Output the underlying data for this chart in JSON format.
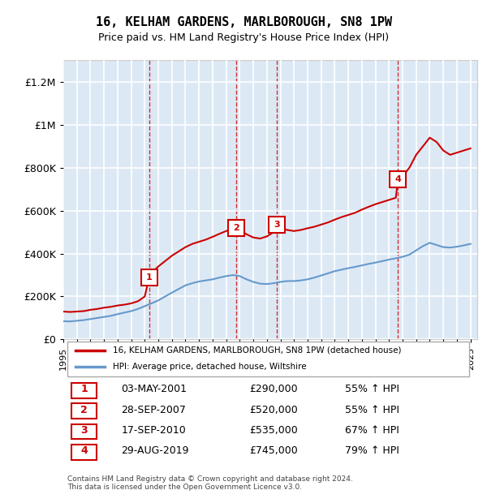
{
  "title": "16, KELHAM GARDENS, MARLBOROUGH, SN8 1PW",
  "subtitle": "Price paid vs. HM Land Registry's House Price Index (HPI)",
  "ylabel_ticks": [
    "£0",
    "£200K",
    "£400K",
    "£600K",
    "£800K",
    "£1M",
    "£1.2M"
  ],
  "ytick_values": [
    0,
    200000,
    400000,
    600000,
    800000,
    1000000,
    1200000
  ],
  "ylim": [
    0,
    1300000
  ],
  "xlim_start": 1995.0,
  "xlim_end": 2025.5,
  "background_color": "#dce9f5",
  "plot_bg_color": "#dce9f5",
  "grid_color": "#ffffff",
  "red_line_color": "#cc0000",
  "blue_line_color": "#6699cc",
  "sale_marker_color": "#cc0000",
  "sale_border_color": "#cc0000",
  "sale_points": [
    {
      "label": "1",
      "year": 2001.33,
      "price": 290000,
      "date": "03-MAY-2001",
      "pct": "55%"
    },
    {
      "label": "2",
      "year": 2007.75,
      "price": 520000,
      "date": "28-SEP-2007",
      "pct": "55%"
    },
    {
      "label": "3",
      "year": 2010.71,
      "price": 535000,
      "date": "17-SEP-2010",
      "pct": "67%"
    },
    {
      "label": "4",
      "year": 2019.66,
      "price": 745000,
      "date": "29-AUG-2019",
      "pct": "79%"
    }
  ],
  "red_line_x": [
    1995.0,
    1995.5,
    1996.0,
    1996.5,
    1997.0,
    1997.5,
    1998.0,
    1998.5,
    1999.0,
    1999.5,
    2000.0,
    2000.5,
    2001.0,
    2001.33,
    2001.5,
    2002.0,
    2002.5,
    2003.0,
    2003.5,
    2004.0,
    2004.5,
    2005.0,
    2005.5,
    2006.0,
    2006.5,
    2007.0,
    2007.5,
    2007.75,
    2008.0,
    2008.5,
    2009.0,
    2009.5,
    2010.0,
    2010.5,
    2010.71,
    2011.0,
    2011.5,
    2012.0,
    2012.5,
    2013.0,
    2013.5,
    2014.0,
    2014.5,
    2015.0,
    2015.5,
    2016.0,
    2016.5,
    2017.0,
    2017.5,
    2018.0,
    2018.5,
    2019.0,
    2019.5,
    2019.66,
    2020.0,
    2020.5,
    2021.0,
    2021.5,
    2022.0,
    2022.5,
    2023.0,
    2023.5,
    2024.0,
    2024.5,
    2025.0
  ],
  "red_line_y": [
    130000,
    128000,
    130000,
    132000,
    138000,
    142000,
    148000,
    152000,
    158000,
    162000,
    168000,
    178000,
    200000,
    290000,
    310000,
    340000,
    365000,
    390000,
    410000,
    430000,
    445000,
    455000,
    465000,
    478000,
    492000,
    505000,
    515000,
    520000,
    510000,
    490000,
    475000,
    470000,
    480000,
    500000,
    535000,
    520000,
    510000,
    505000,
    510000,
    518000,
    525000,
    535000,
    545000,
    558000,
    570000,
    580000,
    590000,
    605000,
    618000,
    630000,
    640000,
    650000,
    660000,
    745000,
    760000,
    800000,
    860000,
    900000,
    940000,
    920000,
    880000,
    860000,
    870000,
    880000,
    890000
  ],
  "blue_line_x": [
    1995.0,
    1995.5,
    1996.0,
    1996.5,
    1997.0,
    1997.5,
    1998.0,
    1998.5,
    1999.0,
    1999.5,
    2000.0,
    2000.5,
    2001.0,
    2001.5,
    2002.0,
    2002.5,
    2003.0,
    2003.5,
    2004.0,
    2004.5,
    2005.0,
    2005.5,
    2006.0,
    2006.5,
    2007.0,
    2007.5,
    2008.0,
    2008.5,
    2009.0,
    2009.5,
    2010.0,
    2010.5,
    2011.0,
    2011.5,
    2012.0,
    2012.5,
    2013.0,
    2013.5,
    2014.0,
    2014.5,
    2015.0,
    2015.5,
    2016.0,
    2016.5,
    2017.0,
    2017.5,
    2018.0,
    2018.5,
    2019.0,
    2019.5,
    2020.0,
    2020.5,
    2021.0,
    2021.5,
    2022.0,
    2022.5,
    2023.0,
    2023.5,
    2024.0,
    2024.5,
    2025.0
  ],
  "blue_line_y": [
    85000,
    84000,
    87000,
    90000,
    95000,
    100000,
    105000,
    110000,
    118000,
    125000,
    132000,
    142000,
    155000,
    168000,
    182000,
    200000,
    218000,
    235000,
    252000,
    262000,
    270000,
    275000,
    280000,
    288000,
    295000,
    300000,
    295000,
    280000,
    268000,
    260000,
    258000,
    262000,
    268000,
    272000,
    272000,
    275000,
    280000,
    288000,
    298000,
    308000,
    318000,
    325000,
    332000,
    338000,
    345000,
    352000,
    358000,
    365000,
    372000,
    378000,
    385000,
    395000,
    415000,
    435000,
    450000,
    440000,
    430000,
    428000,
    432000,
    438000,
    445000
  ],
  "footer_text": "Contains HM Land Registry data © Crown copyright and database right 2024.\nThis data is licensed under the Open Government Licence v3.0.",
  "legend_red_label": "16, KELHAM GARDENS, MARLBOROUGH, SN8 1PW (detached house)",
  "legend_blue_label": "HPI: Average price, detached house, Wiltshire",
  "table_rows": [
    {
      "num": "1",
      "date": "03-MAY-2001",
      "price": "£290,000",
      "pct": "55% ↑ HPI"
    },
    {
      "num": "2",
      "date": "28-SEP-2007",
      "price": "£520,000",
      "pct": "55% ↑ HPI"
    },
    {
      "num": "3",
      "date": "17-SEP-2010",
      "price": "£535,000",
      "pct": "67% ↑ HPI"
    },
    {
      "num": "4",
      "date": "29-AUG-2019",
      "price": "£745,000",
      "pct": "79% ↑ HPI"
    }
  ]
}
